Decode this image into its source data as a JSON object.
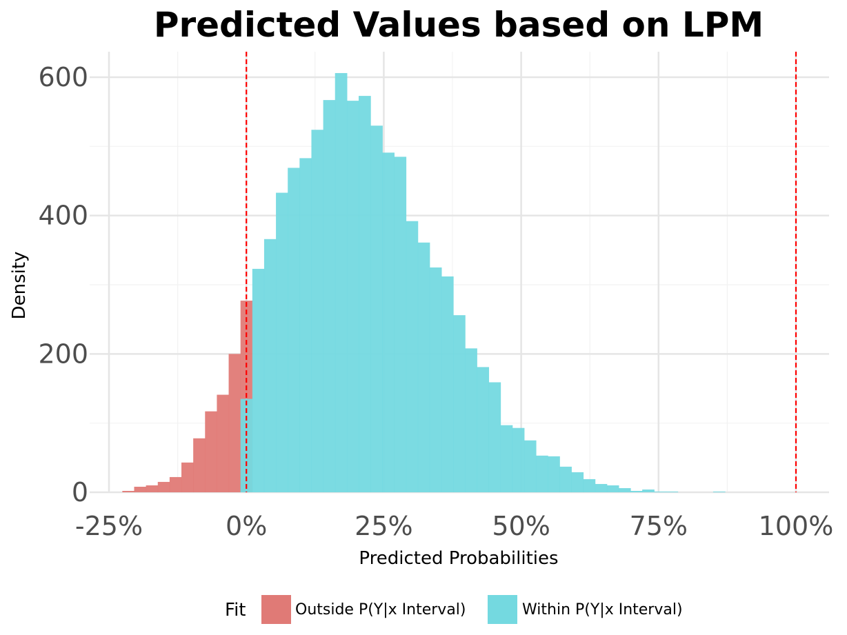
{
  "chart_data": {
    "type": "histogram",
    "title": "Predicted Values based on LPM",
    "xlabel": "Predicted Probabilities",
    "ylabel": "Density",
    "x_unit": "fraction (axis printed as percent)",
    "xlim": [
      -0.25,
      1.0
    ],
    "ylim": [
      0,
      600
    ],
    "x_ticks": [
      -0.25,
      0,
      0.25,
      0.5,
      0.75,
      1.0
    ],
    "x_tick_labels": [
      "-25%",
      "0%",
      "25%",
      "50%",
      "75%",
      "100%"
    ],
    "y_ticks": [
      0,
      200,
      400,
      600
    ],
    "y_tick_labels": [
      "0",
      "200",
      "400",
      "600"
    ],
    "grid": true,
    "reference_lines": [
      {
        "x": 0.0,
        "color": "#ff0000",
        "style": "dashed"
      },
      {
        "x": 1.0,
        "color": "#ff0000",
        "style": "dashed"
      }
    ],
    "bin_width": 0.0215,
    "series": [
      {
        "name": "Outside P(Y|x Interval)",
        "color": "#e07a76",
        "bins": [
          {
            "x0": -0.2257,
            "x1": -0.2042,
            "y": 2
          },
          {
            "x0": -0.2042,
            "x1": -0.1827,
            "y": 8
          },
          {
            "x0": -0.1827,
            "x1": -0.1612,
            "y": 10
          },
          {
            "x0": -0.1612,
            "x1": -0.1397,
            "y": 15
          },
          {
            "x0": -0.1397,
            "x1": -0.1182,
            "y": 22
          },
          {
            "x0": -0.1182,
            "x1": -0.0967,
            "y": 43
          },
          {
            "x0": -0.0967,
            "x1": -0.0752,
            "y": 78
          },
          {
            "x0": -0.0752,
            "x1": -0.0537,
            "y": 117
          },
          {
            "x0": -0.0537,
            "x1": -0.0322,
            "y": 141
          },
          {
            "x0": -0.0322,
            "x1": -0.0107,
            "y": 200
          },
          {
            "x0": -0.0107,
            "x1": 0.0108,
            "y": 277
          }
        ]
      },
      {
        "name": "Within P(Y|x Interval)",
        "color": "#74d9e0",
        "bins": [
          {
            "x0": -0.0107,
            "x1": 0.0108,
            "y": 135
          },
          {
            "x0": 0.0108,
            "x1": 0.0323,
            "y": 323
          },
          {
            "x0": 0.0323,
            "x1": 0.0538,
            "y": 366
          },
          {
            "x0": 0.0538,
            "x1": 0.0753,
            "y": 433
          },
          {
            "x0": 0.0753,
            "x1": 0.0968,
            "y": 469
          },
          {
            "x0": 0.0968,
            "x1": 0.1183,
            "y": 483
          },
          {
            "x0": 0.1183,
            "x1": 0.1398,
            "y": 524
          },
          {
            "x0": 0.1398,
            "x1": 0.1613,
            "y": 567
          },
          {
            "x0": 0.1613,
            "x1": 0.1828,
            "y": 606
          },
          {
            "x0": 0.1828,
            "x1": 0.2043,
            "y": 566
          },
          {
            "x0": 0.2043,
            "x1": 0.2258,
            "y": 573
          },
          {
            "x0": 0.2258,
            "x1": 0.2473,
            "y": 530
          },
          {
            "x0": 0.2473,
            "x1": 0.2688,
            "y": 491
          },
          {
            "x0": 0.2688,
            "x1": 0.2903,
            "y": 485
          },
          {
            "x0": 0.2903,
            "x1": 0.3118,
            "y": 392
          },
          {
            "x0": 0.3118,
            "x1": 0.3333,
            "y": 361
          },
          {
            "x0": 0.3333,
            "x1": 0.3548,
            "y": 325
          },
          {
            "x0": 0.3548,
            "x1": 0.3763,
            "y": 312
          },
          {
            "x0": 0.3763,
            "x1": 0.3978,
            "y": 256
          },
          {
            "x0": 0.3978,
            "x1": 0.4193,
            "y": 208
          },
          {
            "x0": 0.4193,
            "x1": 0.4408,
            "y": 181
          },
          {
            "x0": 0.4408,
            "x1": 0.4623,
            "y": 159
          },
          {
            "x0": 0.4623,
            "x1": 0.4838,
            "y": 97
          },
          {
            "x0": 0.4838,
            "x1": 0.5053,
            "y": 93
          },
          {
            "x0": 0.5053,
            "x1": 0.5268,
            "y": 75
          },
          {
            "x0": 0.5268,
            "x1": 0.5483,
            "y": 53
          },
          {
            "x0": 0.5483,
            "x1": 0.5698,
            "y": 52
          },
          {
            "x0": 0.5698,
            "x1": 0.5913,
            "y": 37
          },
          {
            "x0": 0.5913,
            "x1": 0.6128,
            "y": 29
          },
          {
            "x0": 0.6128,
            "x1": 0.6343,
            "y": 19
          },
          {
            "x0": 0.6343,
            "x1": 0.6558,
            "y": 12
          },
          {
            "x0": 0.6558,
            "x1": 0.6773,
            "y": 10
          },
          {
            "x0": 0.6773,
            "x1": 0.6988,
            "y": 6
          },
          {
            "x0": 0.6988,
            "x1": 0.7203,
            "y": 2
          },
          {
            "x0": 0.7203,
            "x1": 0.7418,
            "y": 4
          },
          {
            "x0": 0.7418,
            "x1": 0.7633,
            "y": 1
          },
          {
            "x0": 0.7633,
            "x1": 0.7848,
            "y": 1
          },
          {
            "x0": 0.7848,
            "x1": 0.8063,
            "y": 0
          },
          {
            "x0": 0.8063,
            "x1": 0.8278,
            "y": 0
          },
          {
            "x0": 0.8278,
            "x1": 0.8493,
            "y": 0
          },
          {
            "x0": 0.8493,
            "x1": 0.8708,
            "y": 1
          }
        ]
      }
    ],
    "legend": {
      "title": "Fit",
      "position": "bottom",
      "items": [
        {
          "label": "Outside P(Y|x Interval)",
          "color": "#e07a76"
        },
        {
          "label": "Within P(Y|x Interval)",
          "color": "#74d9e0"
        }
      ]
    }
  }
}
